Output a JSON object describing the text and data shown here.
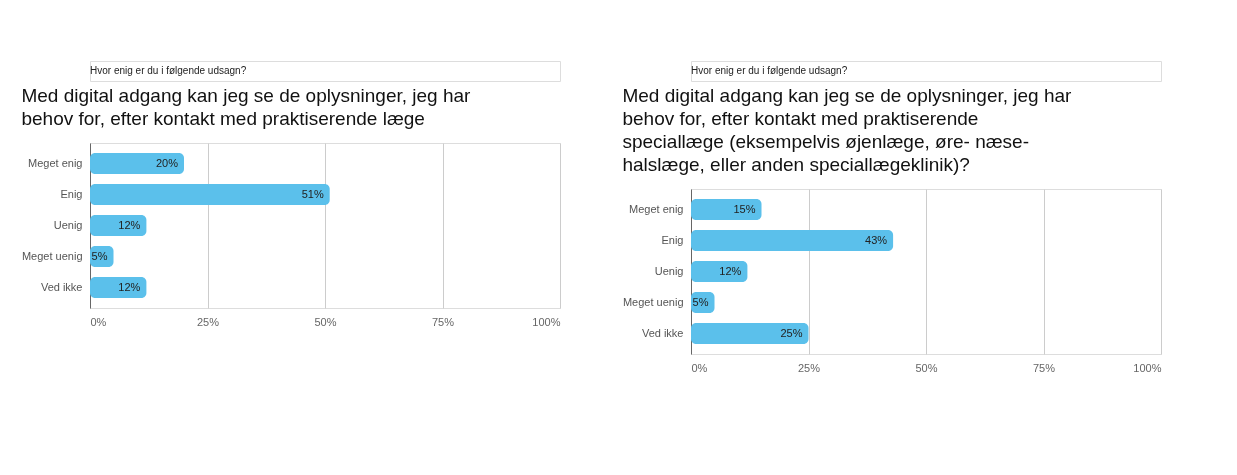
{
  "chart_data": [
    {
      "type": "bar",
      "orientation": "horizontal",
      "subtitle": "Hvor enig er du i følgende udsagn?",
      "title": "Med digital adgang kan jeg se de oplysninger, jeg har behov for, efter kontakt med praktiserende læge",
      "categories": [
        "Meget enig",
        "Enig",
        "Uenig",
        "Meget uenig",
        "Ved ikke"
      ],
      "values": [
        20,
        51,
        12,
        5,
        12
      ],
      "value_labels": [
        "20%",
        "51%",
        "12%",
        "5%",
        "12%"
      ],
      "color": "#5bc0eb",
      "xlim": [
        0,
        100
      ],
      "xticks": [
        {
          "value": 0,
          "label": "0%"
        },
        {
          "value": 25,
          "label": "25%"
        },
        {
          "value": 50,
          "label": "50%"
        },
        {
          "value": 75,
          "label": "75%"
        },
        {
          "value": 100,
          "label": "100%"
        }
      ],
      "grid": "x"
    },
    {
      "type": "bar",
      "orientation": "horizontal",
      "subtitle": "Hvor enig er du i følgende udsagn?",
      "title": "Med digital adgang kan jeg se de oplysninger, jeg har behov for, efter kontakt med praktiserende speciallæge (eksempelvis øjenlæge, øre- næse-halslæge, eller anden speciallægeklinik)?",
      "categories": [
        "Meget enig",
        "Enig",
        "Uenig",
        "Meget uenig",
        "Ved ikke"
      ],
      "values": [
        15,
        43,
        12,
        5,
        25
      ],
      "value_labels": [
        "15%",
        "43%",
        "12%",
        "5%",
        "25%"
      ],
      "color": "#5bc0eb",
      "xlim": [
        0,
        100
      ],
      "xticks": [
        {
          "value": 0,
          "label": "0%"
        },
        {
          "value": 25,
          "label": "25%"
        },
        {
          "value": 50,
          "label": "50%"
        },
        {
          "value": 75,
          "label": "75%"
        },
        {
          "value": 100,
          "label": "100%"
        }
      ],
      "grid": "x"
    }
  ]
}
